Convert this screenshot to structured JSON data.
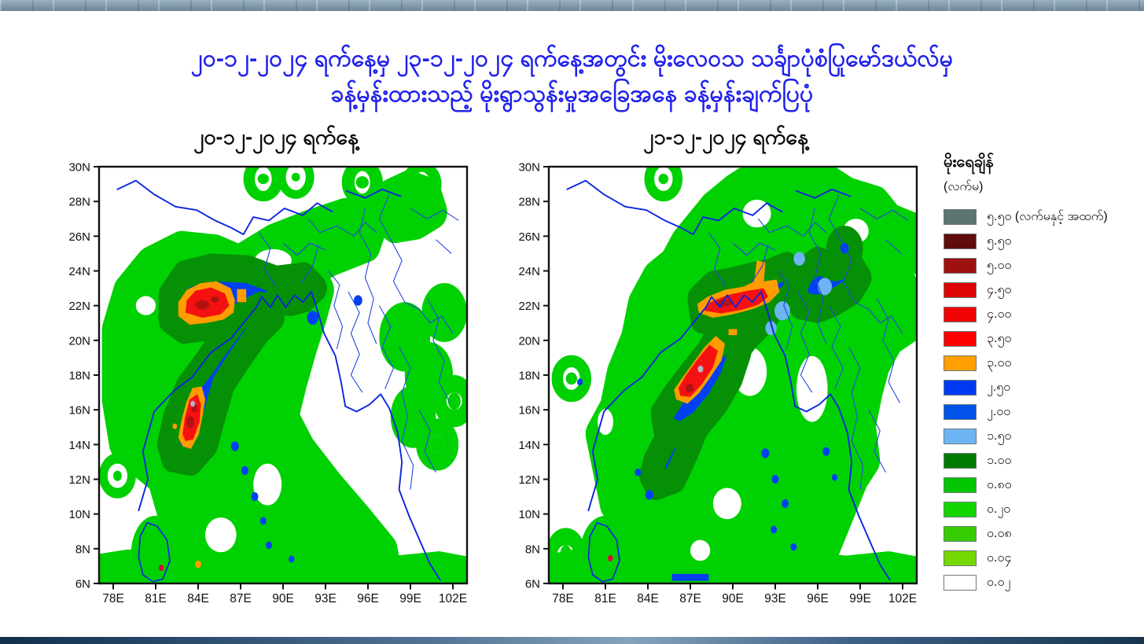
{
  "slide": {
    "title_line1": "၂၀-၁၂-၂၀၂၄ ရက်နေ့မှ ၂၃-၁၂-၂၀၂၄ ရက်နေ့အတွင်း မိုးလေဝသ သင်္ချာပုံစံပြုမော်ဒယ်လ်မှ",
    "title_line2": "ခန့်မှန်းထားသည့် မိုးရွာသွန်းမှုအခြေအနေ ခန့်မှန်းချက်ပြပုံ",
    "title_color": "#2020ee"
  },
  "panels": [
    {
      "label": "၂၀-၁၂-၂၀၂၄ ရက်နေ့"
    },
    {
      "label": "၂၁-၁၂-၂၀၂၄ ရက်နေ့"
    }
  ],
  "axes": {
    "lat_ticks": [
      "30N",
      "28N",
      "26N",
      "24N",
      "22N",
      "20N",
      "18N",
      "16N",
      "14N",
      "12N",
      "10N",
      "8N",
      "6N"
    ],
    "lon_ticks": [
      "78E",
      "81E",
      "84E",
      "87E",
      "90E",
      "93E",
      "96E",
      "99E",
      "102E"
    ]
  },
  "legend": {
    "title": "မိုးရေချိန်",
    "subtitle": "(လက်မ)",
    "entries": [
      {
        "label": "၅.၅၀ (လက်မနှင့် အထက်)",
        "color": "#5c7372"
      },
      {
        "label": "၅.၅၀",
        "color": "#5f0c0c"
      },
      {
        "label": "၅.၀၀",
        "color": "#9e1111"
      },
      {
        "label": "၄.၅၀",
        "color": "#dc0404"
      },
      {
        "label": "၄.၀၀",
        "color": "#ef0303"
      },
      {
        "label": "၃.၅၀",
        "color": "#fd0202"
      },
      {
        "label": "၃.၀၀",
        "color": "#ff9f01"
      },
      {
        "label": "၂.၅၀",
        "color": "#0139f2"
      },
      {
        "label": "၂.၀၀",
        "color": "#0253ea"
      },
      {
        "label": "၁.၅၀",
        "color": "#6cb5f2"
      },
      {
        "label": "၁.၀၀",
        "color": "#017a01"
      },
      {
        "label": "၀.၈၀",
        "color": "#01c601"
      },
      {
        "label": "၀.၂၀",
        "color": "#13d601"
      },
      {
        "label": "၀.၀၈",
        "color": "#36cd02"
      },
      {
        "label": "၀.၀၄",
        "color": "#76d801"
      },
      {
        "label": "၀.၀၂",
        "color": "#ffffff"
      }
    ]
  },
  "chart_data": {
    "type": "heatmap",
    "title": "၂၀-၁၂-၂၀၂၄ ရက်နေ့မှ ၂၃-၁၂-၂၀၂၄ ရက်နေ့အတွင်း မိုးလေဝသ သင်္ချာပုံစံပြုမော်ဒယ်လ်မှ ခန့်မှန်းထားသည့် မိုးရွာသွန်းမှုအခြေအနေ ခန့်မှန်းချက်ပြပုံ",
    "legend_position": "right",
    "grid": false,
    "panels": [
      {
        "label": "၂၀-၁၂-၂၀၂၄ ရက်နေ့",
        "x_axis": {
          "ticks": [
            78,
            81,
            84,
            87,
            90,
            93,
            96,
            99,
            102
          ],
          "suffix": "E",
          "range": [
            77,
            103
          ]
        },
        "y_axis": {
          "ticks": [
            30,
            28,
            26,
            24,
            22,
            20,
            18,
            16,
            14,
            12,
            10,
            8,
            6
          ],
          "suffix": "N",
          "range": [
            6,
            30
          ]
        },
        "rain_maxima": [
          {
            "lon": 84.5,
            "lat": 22.2,
            "peak_inches": "4.00–5.00",
            "note": "orange-rimmed red core over east-central India"
          },
          {
            "lon": 83.5,
            "lat": 15.8,
            "peak_inches": "5.50+ (small grey patch)",
            "note": "elongated core in the west Bay of Bengal"
          }
        ],
        "moderate_rain_band_inches": "2.00–2.50 blue band from about (83E,13N) northeast to (92E,23N)",
        "light_rain_inches": "0.02–0.80 green field covering east India, Bangladesh, Bay of Bengal and a band into northeast Myanmar"
      },
      {
        "label": "၂၁-၁၂-၂၀၂၄ ရက်နေ့",
        "x_axis": {
          "ticks": [
            78,
            81,
            84,
            87,
            90,
            93,
            96,
            99,
            102
          ],
          "suffix": "E",
          "range": [
            77,
            103
          ]
        },
        "y_axis": {
          "ticks": [
            30,
            28,
            26,
            24,
            22,
            20,
            18,
            16,
            14,
            12,
            10,
            8,
            6
          ],
          "suffix": "N",
          "range": [
            6,
            30
          ]
        },
        "rain_maxima": [
          {
            "lon": 90.5,
            "lat": 22.5,
            "peak_inches": "3.50–4.50",
            "note": "red band along southern Bangladesh / Meghalaya"
          },
          {
            "lon": 87.8,
            "lat": 18.3,
            "peak_inches": "5.50+ (small grey patch)",
            "note": "elongated NE–SW core in the northwest Bay of Bengal"
          }
        ],
        "moderate_rain_band_inches": "2.00–2.50 blue band from about (85E,12N) northeast to (93E,22N), plus blue patch over north Myanmar near (95–99E,22–24N)",
        "light_rain_inches": "0.02–0.80 green field covering the Bay of Bengal, Bangladesh and most of Myanmar"
      }
    ],
    "scale": {
      "title": "မိုးရေချိန်",
      "units": "(လက်မ)",
      "levels_inches": [
        5.5,
        5.0,
        4.5,
        4.0,
        3.5,
        3.0,
        2.5,
        2.0,
        1.5,
        1.0,
        0.8,
        0.2,
        0.08,
        0.04,
        0.02
      ],
      "top_level_label": "၅.၅၀ (လက်မနှင့် အထက်)",
      "colors": [
        "#5c7372",
        "#5f0c0c",
        "#9e1111",
        "#dc0404",
        "#ef0303",
        "#fd0202",
        "#ff9f01",
        "#0139f2",
        "#0253ea",
        "#6cb5f2",
        "#017a01",
        "#01c601",
        "#13d601",
        "#36cd02",
        "#76d801",
        "#ffffff"
      ]
    }
  }
}
